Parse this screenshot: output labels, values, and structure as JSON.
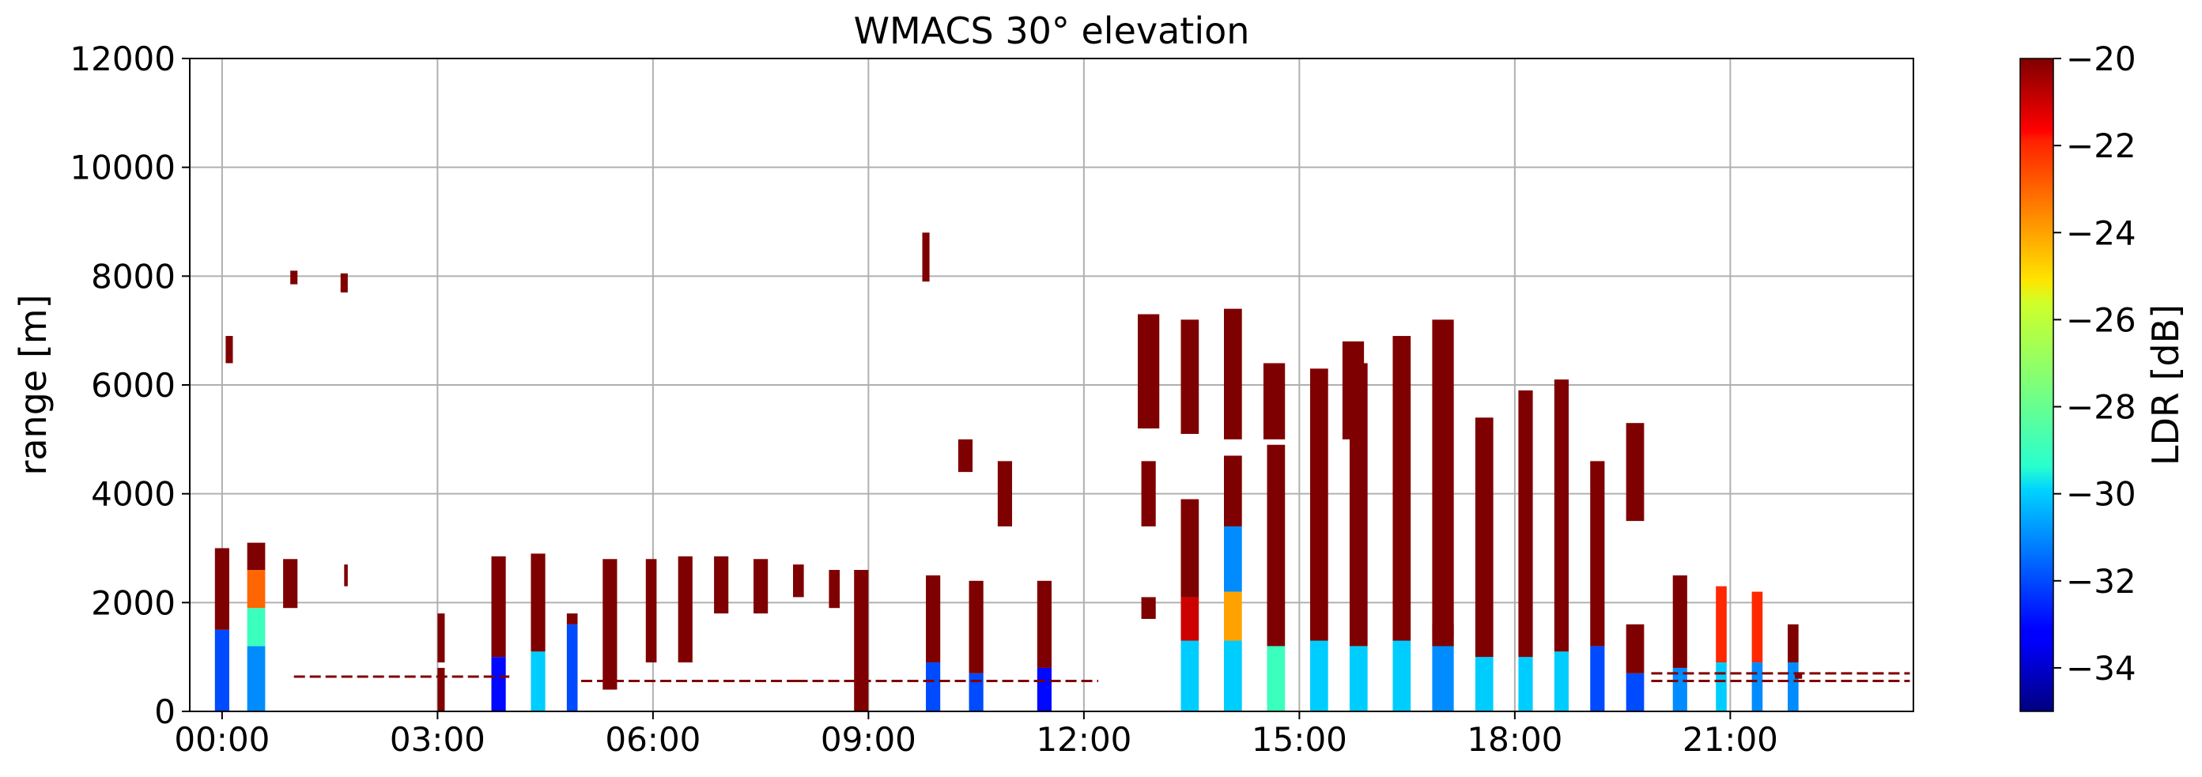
{
  "chart_data": {
    "type": "heatmap",
    "title": "WMACS 30° elevation",
    "ylabel": "range [m]",
    "xlabel": "",
    "x_ticks": [
      "00:00",
      "03:00",
      "06:00",
      "09:00",
      "12:00",
      "15:00",
      "18:00",
      "21:00"
    ],
    "x_tick_hours": [
      0,
      3,
      6,
      9,
      12,
      15,
      18,
      21
    ],
    "xlim_hours": [
      -0.45,
      23.55
    ],
    "y_ticks": [
      0,
      2000,
      4000,
      6000,
      8000,
      10000,
      12000
    ],
    "ylim": [
      0,
      12000
    ],
    "grid": true,
    "colorbar": {
      "label": "LDR [dB]",
      "range": [
        -35,
        -20
      ],
      "ticks": [
        -20,
        -22,
        -24,
        -26,
        -28,
        -30,
        -32,
        -34
      ],
      "tick_labels": [
        "−20",
        "−22",
        "−24",
        "−26",
        "−28",
        "−30",
        "−32",
        "−34"
      ],
      "colormap": "jet"
    },
    "colors": {
      "dark_red": "#800000",
      "red": "#ff2000",
      "orange": "#ff9a00",
      "yellow": "#e8ff00",
      "cyan": "#00d8ff",
      "light_blue": "#00a0ff",
      "blue": "#0030ff",
      "grid": "#b0b0b0"
    },
    "profiles": [
      {
        "start": -0.1,
        "end": 0.1,
        "layers": [
          [
            0,
            1500,
            -32
          ],
          [
            1500,
            3000,
            -20
          ]
        ]
      },
      {
        "start": 0.35,
        "end": 0.6,
        "layers": [
          [
            0,
            1200,
            -31
          ],
          [
            1200,
            1900,
            -29
          ],
          [
            1900,
            2600,
            -23
          ],
          [
            2600,
            3100,
            -20
          ]
        ]
      },
      {
        "start": 0.85,
        "end": 1.05,
        "layers": [
          [
            1900,
            2800,
            -20
          ]
        ]
      },
      {
        "start": 1.7,
        "end": 1.75,
        "layers": [
          [
            2300,
            2700,
            -20
          ]
        ]
      },
      {
        "start": 3.0,
        "end": 3.1,
        "layers": [
          [
            0,
            800,
            -20
          ],
          [
            900,
            1800,
            -20
          ]
        ]
      },
      {
        "start": 3.75,
        "end": 3.95,
        "layers": [
          [
            0,
            1000,
            -33
          ],
          [
            1000,
            2850,
            -20
          ]
        ]
      },
      {
        "start": 4.3,
        "end": 4.5,
        "layers": [
          [
            0,
            1100,
            -30
          ],
          [
            1100,
            2900,
            -20
          ]
        ]
      },
      {
        "start": 4.8,
        "end": 4.95,
        "layers": [
          [
            0,
            1600,
            -32
          ],
          [
            1600,
            1800,
            -20
          ]
        ]
      },
      {
        "start": 5.3,
        "end": 5.5,
        "layers": [
          [
            400,
            2800,
            -20
          ]
        ]
      },
      {
        "start": 5.9,
        "end": 6.05,
        "layers": [
          [
            900,
            2800,
            -20
          ]
        ]
      },
      {
        "start": 6.35,
        "end": 6.55,
        "layers": [
          [
            900,
            2850,
            -20
          ]
        ]
      },
      {
        "start": 6.85,
        "end": 7.05,
        "layers": [
          [
            1800,
            2850,
            -20
          ]
        ]
      },
      {
        "start": 7.4,
        "end": 7.6,
        "layers": [
          [
            1800,
            2800,
            -20
          ]
        ]
      },
      {
        "start": 7.95,
        "end": 8.1,
        "layers": [
          [
            2100,
            2700,
            -20
          ]
        ]
      },
      {
        "start": 8.45,
        "end": 8.6,
        "layers": [
          [
            1900,
            2600,
            -20
          ]
        ]
      },
      {
        "start": 8.8,
        "end": 9.0,
        "layers": [
          [
            0,
            2600,
            -20
          ]
        ]
      },
      {
        "start": 9.8,
        "end": 10.0,
        "layers": [
          [
            0,
            900,
            -32
          ],
          [
            900,
            2500,
            -20
          ]
        ]
      },
      {
        "start": 10.4,
        "end": 10.6,
        "layers": [
          [
            0,
            700,
            -32
          ],
          [
            700,
            2400,
            -20
          ]
        ]
      },
      {
        "start": 11.35,
        "end": 11.55,
        "layers": [
          [
            0,
            800,
            -33
          ],
          [
            800,
            2400,
            -20
          ]
        ]
      },
      {
        "start": 12.8,
        "end": 13.0,
        "layers": [
          [
            1700,
            2100,
            -20
          ],
          [
            3400,
            4600,
            -20
          ]
        ]
      },
      {
        "start": 13.35,
        "end": 13.6,
        "layers": [
          [
            0,
            1300,
            -30
          ],
          [
            1300,
            2100,
            -21
          ],
          [
            2100,
            3900,
            -20
          ],
          [
            5100,
            7200,
            -20
          ]
        ]
      },
      {
        "start": 13.95,
        "end": 14.2,
        "layers": [
          [
            0,
            1300,
            -30
          ],
          [
            1300,
            2200,
            -24
          ],
          [
            2200,
            3400,
            -31
          ],
          [
            3400,
            4700,
            -20
          ],
          [
            5000,
            7400,
            -20
          ]
        ]
      },
      {
        "start": 14.55,
        "end": 14.8,
        "layers": [
          [
            0,
            1200,
            -29
          ],
          [
            1200,
            4900,
            -20
          ]
        ]
      },
      {
        "start": 15.15,
        "end": 15.4,
        "layers": [
          [
            0,
            1300,
            -30
          ],
          [
            1300,
            6300,
            -20
          ]
        ]
      },
      {
        "start": 15.7,
        "end": 15.95,
        "layers": [
          [
            0,
            1200,
            -30
          ],
          [
            1200,
            6400,
            -20
          ]
        ]
      },
      {
        "start": 16.3,
        "end": 16.55,
        "layers": [
          [
            0,
            1300,
            -30
          ],
          [
            1300,
            6900,
            -20
          ]
        ]
      },
      {
        "start": 16.85,
        "end": 17.15,
        "layers": [
          [
            0,
            1400,
            -31
          ],
          [
            1400,
            7200,
            -20
          ]
        ]
      },
      {
        "start": 17.45,
        "end": 17.7,
        "layers": [
          [
            0,
            1000,
            -30
          ],
          [
            1000,
            5400,
            -20
          ]
        ]
      },
      {
        "start": 18.05,
        "end": 18.25,
        "layers": [
          [
            0,
            1000,
            -30
          ],
          [
            1000,
            5900,
            -20
          ]
        ]
      },
      {
        "start": 18.55,
        "end": 18.75,
        "layers": [
          [
            0,
            1100,
            -30
          ],
          [
            1100,
            6100,
            -20
          ]
        ]
      },
      {
        "start": 19.05,
        "end": 19.25,
        "layers": [
          [
            0,
            1200,
            -32
          ],
          [
            1200,
            4600,
            -20
          ]
        ]
      },
      {
        "start": 19.55,
        "end": 19.8,
        "layers": [
          [
            0,
            700,
            -32
          ],
          [
            700,
            1600,
            -20
          ],
          [
            3500,
            5300,
            -20
          ]
        ]
      },
      {
        "start": 20.2,
        "end": 20.4,
        "layers": [
          [
            0,
            800,
            -31
          ],
          [
            800,
            2500,
            -20
          ]
        ]
      },
      {
        "start": 20.8,
        "end": 20.95,
        "layers": [
          [
            0,
            900,
            -30
          ],
          [
            900,
            2300,
            -22
          ]
        ]
      },
      {
        "start": 21.3,
        "end": 21.45,
        "layers": [
          [
            0,
            900,
            -31
          ],
          [
            900,
            2200,
            -22
          ]
        ]
      },
      {
        "start": 21.8,
        "end": 21.95,
        "layers": [
          [
            0,
            900,
            -31
          ],
          [
            900,
            1600,
            -20
          ]
        ]
      }
    ],
    "patches": [
      {
        "start": 0.05,
        "end": 0.15,
        "bottom": 6400,
        "top": 6900,
        "ldr": -20
      },
      {
        "start": 0.95,
        "end": 1.05,
        "bottom": 7850,
        "top": 8100,
        "ldr": -20
      },
      {
        "start": 1.65,
        "end": 1.75,
        "bottom": 7700,
        "top": 8050,
        "ldr": -20
      },
      {
        "start": 9.75,
        "end": 9.85,
        "bottom": 7900,
        "top": 8800,
        "ldr": -20
      },
      {
        "start": 10.25,
        "end": 10.45,
        "bottom": 4400,
        "top": 5000,
        "ldr": -20
      },
      {
        "start": 10.8,
        "end": 11.0,
        "bottom": 3400,
        "top": 4600,
        "ldr": -20
      },
      {
        "start": 12.75,
        "end": 13.05,
        "bottom": 5200,
        "top": 7300,
        "ldr": -20
      },
      {
        "start": 14.5,
        "end": 14.8,
        "bottom": 5000,
        "top": 6400,
        "ldr": -20
      },
      {
        "start": 15.6,
        "end": 15.9,
        "bottom": 5000,
        "top": 6800,
        "ldr": -20
      },
      {
        "start": 16.85,
        "end": 17.15,
        "bottom": 1200,
        "top": 1600,
        "ldr": -20
      },
      {
        "start": 21.9,
        "end": 22.0,
        "bottom": 600,
        "top": 700,
        "ldr": -20
      }
    ],
    "thin_lines": [
      {
        "start": 1.0,
        "end": 4.0,
        "range": 640,
        "ldr": -20
      },
      {
        "start": 5.0,
        "end": 8.0,
        "range": 560,
        "ldr": -20
      },
      {
        "start": 8.0,
        "end": 12.2,
        "range": 560,
        "ldr": -20
      },
      {
        "start": 19.9,
        "end": 23.5,
        "range": 700,
        "ldr": -20
      },
      {
        "start": 19.9,
        "end": 23.5,
        "range": 560,
        "ldr": -20
      }
    ]
  }
}
